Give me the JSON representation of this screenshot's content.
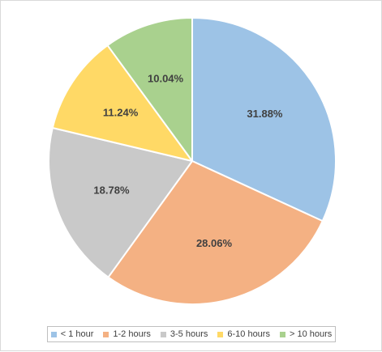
{
  "chart_data": {
    "type": "pie",
    "title": "",
    "categories": [
      "< 1 hour",
      "1-2 hours",
      "3-5 hours",
      "6-10 hours",
      "> 10 hours"
    ],
    "values": [
      31.88,
      28.06,
      18.78,
      11.24,
      10.04
    ],
    "labels": [
      "31.88%",
      "28.06%",
      "18.78%",
      "11.24%",
      "10.04%"
    ],
    "colors": [
      "#9dc3e6",
      "#f4b183",
      "#c9c9c9",
      "#ffd966",
      "#a9d18e"
    ],
    "start_angle": "12 o'clock, clockwise",
    "legend_position": "bottom"
  }
}
